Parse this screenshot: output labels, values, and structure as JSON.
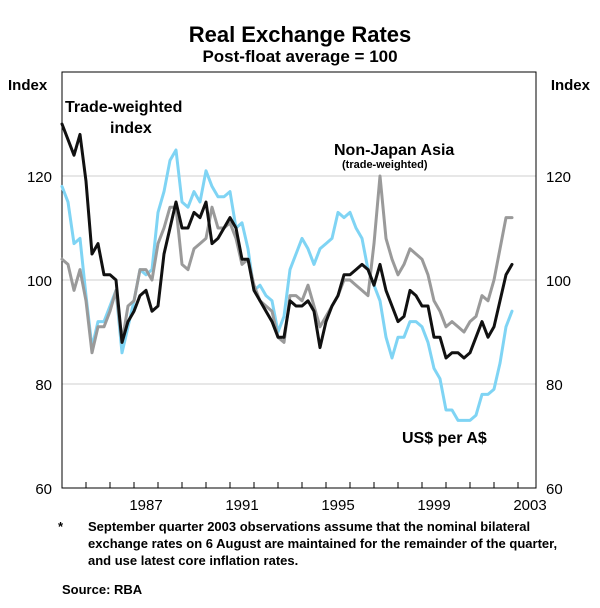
{
  "chart_data": {
    "type": "line",
    "title": "Real Exchange Rates",
    "subtitle": "Post-float average = 100",
    "ylabel_left": "Index",
    "ylabel_right": "Index",
    "ylim": [
      60,
      140
    ],
    "yticks": [
      60,
      80,
      100,
      120
    ],
    "xlim": [
      1984.0,
      2003.75
    ],
    "xticks": [
      1987,
      1991,
      1995,
      1999,
      2003
    ],
    "x_start": 1984.0,
    "x_step": 0.25,
    "series": [
      {
        "name": "Trade-weighted index",
        "label_lines": [
          "Trade-weighted",
          "index"
        ],
        "color": "#111111",
        "values": [
          130,
          127,
          124,
          128,
          119,
          105,
          107,
          101,
          101,
          100,
          88,
          92,
          94,
          97,
          98,
          94,
          95,
          105,
          110,
          115,
          110,
          110,
          113,
          112,
          115,
          107,
          108,
          110,
          112,
          110,
          104,
          104,
          98,
          96,
          94,
          92,
          89,
          89,
          96,
          95,
          95,
          96,
          94,
          87,
          92,
          95,
          97,
          101,
          101,
          102,
          103,
          102,
          99,
          103,
          98,
          95,
          92,
          93,
          98,
          97,
          95,
          95,
          89,
          89,
          85,
          86,
          86,
          85,
          86,
          89,
          92,
          89,
          91,
          96,
          101,
          103
        ]
      },
      {
        "name": "Non-Japan Asia (trade-weighted)",
        "label_lines": [
          "Non-Japan Asia",
          "(trade-weighted)"
        ],
        "color": "#9a9a9a",
        "values": [
          104,
          103,
          98,
          102,
          96,
          86,
          91,
          91,
          94,
          98,
          88,
          95,
          96,
          102,
          102,
          100,
          107,
          110,
          114,
          114,
          103,
          102,
          106,
          107,
          108,
          114,
          110,
          110,
          111,
          108,
          103,
          104,
          99,
          96,
          95,
          94,
          89,
          88,
          97,
          97,
          96,
          99,
          95,
          91,
          93,
          95,
          97,
          100,
          100,
          99,
          98,
          97,
          107,
          120,
          108,
          104,
          101,
          103,
          106,
          105,
          104,
          101,
          96,
          94,
          91,
          92,
          91,
          90,
          92,
          93,
          97,
          96,
          100,
          106,
          112,
          112
        ]
      },
      {
        "name": "US$ per A$",
        "label_lines": [
          "US$ per A$"
        ],
        "color": "#7fd4f4",
        "values": [
          118,
          115,
          107,
          108,
          97,
          87,
          92,
          92,
          95,
          98,
          86,
          91,
          96,
          102,
          101,
          102,
          113,
          117,
          123,
          125,
          115,
          114,
          117,
          115,
          121,
          118,
          116,
          116,
          117,
          110,
          111,
          106,
          98,
          99,
          97,
          96,
          90,
          93,
          102,
          105,
          108,
          106,
          103,
          106,
          107,
          108,
          113,
          112,
          113,
          110,
          108,
          102,
          99,
          96,
          89,
          85,
          89,
          89,
          92,
          92,
          91,
          88,
          83,
          81,
          75,
          75,
          73,
          73,
          73,
          74,
          78,
          78,
          79,
          84,
          91,
          94
        ]
      }
    ]
  },
  "note": {
    "marker": "*",
    "text": "September quarter 2003 observations assume that the nominal bilateral exchange rates on 6 August are maintained for the remainder of the quarter, and use latest core inflation rates."
  },
  "source": "Source: RBA"
}
